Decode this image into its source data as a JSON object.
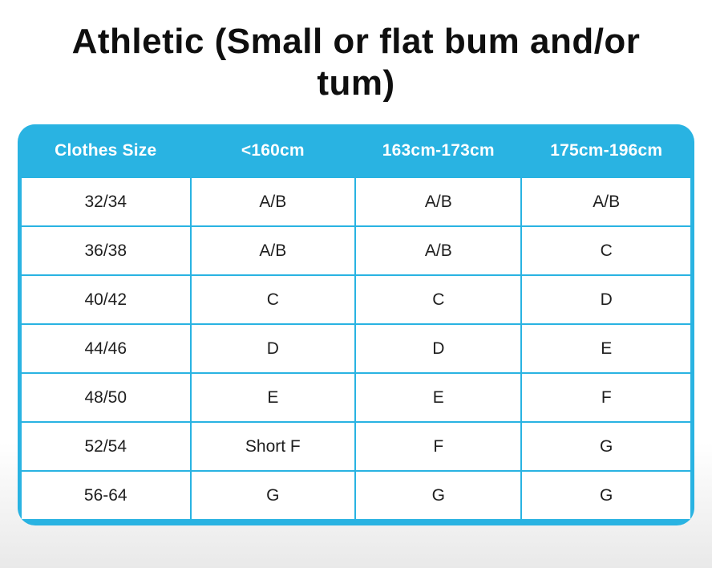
{
  "title": "Athletic (Small or flat bum and/or tum)",
  "colors": {
    "accent": "#29b3e2",
    "header_text": "#ffffff",
    "cell_text": "#1e1e1e",
    "title_text": "#0f0f0f"
  },
  "chart_data": {
    "type": "table",
    "title": "Athletic (Small or flat bum and/or tum)",
    "columns": [
      "Clothes Size",
      "<160cm",
      "163cm-173cm",
      "175cm-196cm"
    ],
    "rows": [
      [
        "32/34",
        "A/B",
        "A/B",
        "A/B"
      ],
      [
        "36/38",
        "A/B",
        "A/B",
        "C"
      ],
      [
        "40/42",
        "C",
        "C",
        "D"
      ],
      [
        "44/46",
        "D",
        "D",
        "E"
      ],
      [
        "48/50",
        "E",
        "E",
        "F"
      ],
      [
        "52/54",
        "Short F",
        "F",
        "G"
      ],
      [
        "56-64",
        "G",
        "G",
        "G"
      ]
    ]
  }
}
